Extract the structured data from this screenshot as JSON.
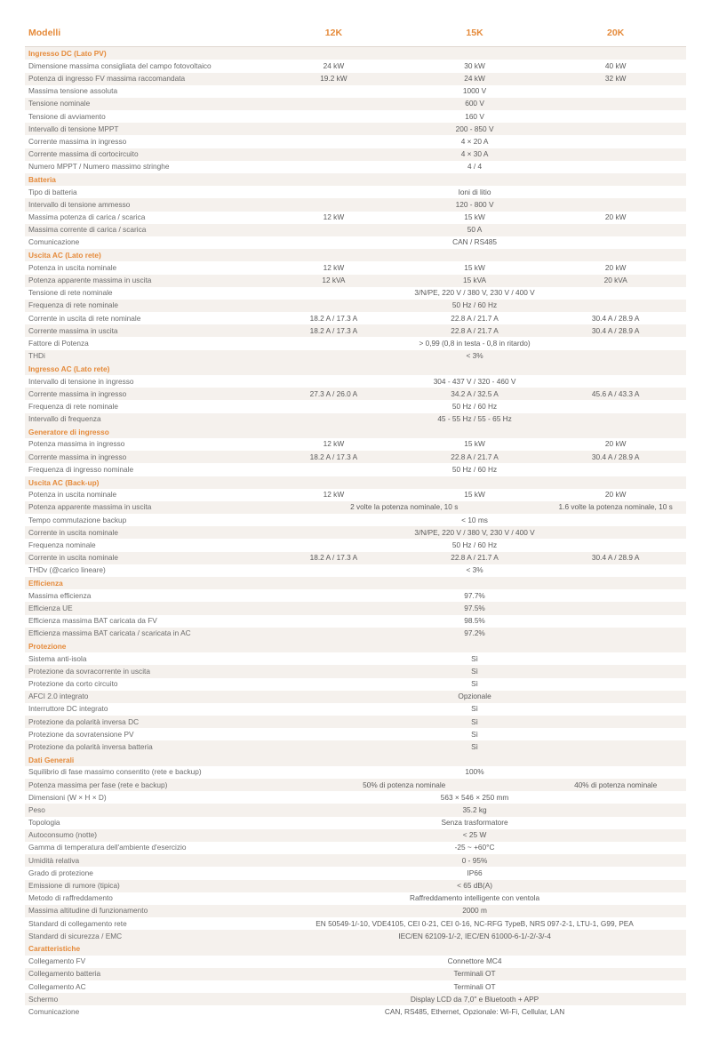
{
  "columns": {
    "label_header": "Modelli",
    "models": [
      "12K",
      "15K",
      "20K"
    ]
  },
  "sections": [
    {
      "title": "Ingresso DC (Lato PV)",
      "rows": [
        {
          "label": "Dimensione massima consigliata del campo fotovoltaico",
          "vals": [
            "24 kW",
            "30 kW",
            "40 kW"
          ]
        },
        {
          "label": "Potenza di ingresso FV massima raccomandata",
          "vals": [
            "19.2 kW",
            "24 kW",
            "32 kW"
          ]
        },
        {
          "label": "Massima tensione assoluta",
          "span": "1000 V"
        },
        {
          "label": "Tensione nominale",
          "span": "600 V"
        },
        {
          "label": "Tensione di avviamento",
          "span": "160 V"
        },
        {
          "label": "Intervallo di tensione MPPT",
          "span": "200 - 850 V"
        },
        {
          "label": "Corrente massima in ingresso",
          "span": "4 × 20 A"
        },
        {
          "label": "Corrente massima di cortocircuito",
          "span": "4 × 30 A"
        },
        {
          "label": "Numero MPPT / Numero massimo stringhe",
          "span": "4 / 4"
        }
      ]
    },
    {
      "title": "Batteria",
      "rows": [
        {
          "label": "Tipo di batteria",
          "span": "Ioni di litio"
        },
        {
          "label": "Intervallo di tensione ammesso",
          "span": "120 - 800 V"
        },
        {
          "label": "Massima potenza di carica / scarica",
          "vals": [
            "12 kW",
            "15 kW",
            "20 kW"
          ]
        },
        {
          "label": "Massima corrente di carica / scarica",
          "span": "50 A"
        },
        {
          "label": "Comunicazione",
          "span": "CAN / RS485"
        }
      ]
    },
    {
      "title": "Uscita AC (Lato rete)",
      "rows": [
        {
          "label": "Potenza in uscita nominale",
          "vals": [
            "12 kW",
            "15 kW",
            "20 kW"
          ]
        },
        {
          "label": "Potenza apparente massima in uscita",
          "vals": [
            "12 kVA",
            "15 kVA",
            "20 kVA"
          ]
        },
        {
          "label": "Tensione di rete nominale",
          "span": "3/N/PE, 220 V / 380 V, 230 V / 400 V"
        },
        {
          "label": "Frequenza di rete nominale",
          "span": "50 Hz / 60 Hz"
        },
        {
          "label": "Corrente in uscita di rete nominale",
          "vals": [
            "18.2 A / 17.3 A",
            "22.8 A / 21.7 A",
            "30.4 A / 28.9 A"
          ]
        },
        {
          "label": "Corrente massima in uscita",
          "vals": [
            "18.2 A / 17.3 A",
            "22.8 A / 21.7 A",
            "30.4 A / 28.9 A"
          ]
        },
        {
          "label": "Fattore di Potenza",
          "span": "> 0,99 (0,8 in testa - 0,8 in ritardo)"
        },
        {
          "label": "THDi",
          "span": "< 3%"
        }
      ]
    },
    {
      "title": "Ingresso AC (Lato rete)",
      "rows": [
        {
          "label": "Intervallo di tensione in ingresso",
          "span": "304 - 437 V / 320 - 460 V"
        },
        {
          "label": "Corrente massima in ingresso",
          "vals": [
            "27.3 A / 26.0 A",
            "34.2 A / 32.5 A",
            "45.6 A / 43.3 A"
          ]
        },
        {
          "label": "Frequenza di rete nominale",
          "span": "50 Hz / 60 Hz"
        },
        {
          "label": "Intervallo di frequenza",
          "span": "45 - 55 Hz / 55 - 65 Hz"
        }
      ]
    },
    {
      "title": "Generatore di ingresso",
      "rows": [
        {
          "label": "Potenza massima in ingresso",
          "vals": [
            "12 kW",
            "15 kW",
            "20 kW"
          ]
        },
        {
          "label": "Corrente massima in ingresso",
          "vals": [
            "18.2 A / 17.3 A",
            "22.8 A / 21.7 A",
            "30.4 A / 28.9 A"
          ]
        },
        {
          "label": "Frequenza di ingresso nominale",
          "span": "50 Hz / 60 Hz"
        }
      ]
    },
    {
      "title": "Uscita AC (Back-up)",
      "rows": [
        {
          "label": "Potenza in uscita nominale",
          "vals": [
            "12 kW",
            "15 kW",
            "20 kW"
          ]
        },
        {
          "label": "Potenza apparente massima in uscita",
          "vals": [
            "",
            "2 volte la potenza nominale, 10 s",
            "1.6 volte la potenza nominale, 10 s"
          ],
          "col1_spans_2": true
        },
        {
          "label": "Tempo commutazione backup",
          "span": "< 10 ms"
        },
        {
          "label": "Corrente in uscita nominale",
          "span": "3/N/PE, 220 V / 380 V, 230 V / 400 V"
        },
        {
          "label": "Frequenza nominale",
          "span": "50 Hz / 60 Hz"
        },
        {
          "label": "Corrente in uscita nominale",
          "vals": [
            "18.2 A / 17.3 A",
            "22.8 A / 21.7 A",
            "30.4 A / 28.9 A"
          ]
        },
        {
          "label": "THDv (@carico lineare)",
          "span": "< 3%"
        }
      ]
    },
    {
      "title": "Efficienza",
      "rows": [
        {
          "label": "Massima efficienza",
          "span": "97.7%"
        },
        {
          "label": "Efficienza UE",
          "span": "97.5%"
        },
        {
          "label": "Efficienza massima BAT caricata da FV",
          "span": "98.5%"
        },
        {
          "label": "Efficienza massima BAT caricata / scaricata in AC",
          "span": "97.2%"
        }
      ]
    },
    {
      "title": "Protezione",
      "rows": [
        {
          "label": "Sistema anti-isola",
          "span": "Sì"
        },
        {
          "label": "Protezione da sovracorrente in uscita",
          "span": "Sì"
        },
        {
          "label": "Protezione da corto circuito",
          "span": "Sì"
        },
        {
          "label": "AFCI 2.0 integrato",
          "span": "Opzionale"
        },
        {
          "label": "Interruttore DC integrato",
          "span": "Sì"
        },
        {
          "label": "Protezione da polarità inversa DC",
          "span": "Sì"
        },
        {
          "label": "Protezione da sovratensione PV",
          "span": "Sì"
        },
        {
          "label": "Protezione da polarità inversa batteria",
          "span": "Sì"
        }
      ]
    },
    {
      "title": "Dati Generali",
      "rows": [
        {
          "label": "Squilibrio di fase massimo consentito (rete e backup)",
          "span": "100%"
        },
        {
          "label": "Potenza massima per fase (rete e backup)",
          "vals": [
            "",
            "50% di potenza nominale",
            "40% di potenza nominale"
          ],
          "col1_spans_2": true
        },
        {
          "label": "Dimensioni (W × H × D)",
          "span": "563 × 546 × 250 mm"
        },
        {
          "label": "Peso",
          "span": "35.2 kg"
        },
        {
          "label": "Topologia",
          "span": "Senza trasformatore"
        },
        {
          "label": "Autoconsumo (notte)",
          "span": "< 25 W"
        },
        {
          "label": "Gamma di temperatura dell'ambiente d'esercizio",
          "span": "-25 ~ +60°C"
        },
        {
          "label": "Umidità relativa",
          "span": "0 - 95%"
        },
        {
          "label": "Grado di protezione",
          "span": "IP66"
        },
        {
          "label": "Emissione di rumore (tipica)",
          "span": "< 65 dB(A)"
        },
        {
          "label": "Metodo di raffreddamento",
          "span": "Raffreddamento intelligente con ventola"
        },
        {
          "label": "Massima altitudine di funzionamento",
          "span": "2000 m"
        },
        {
          "label": "Standard di collegamento rete",
          "span": "EN 50549-1/-10, VDE4105, CEI 0-21, CEI 0-16, NC-RFG TypeB, NRS 097-2-1, LTU-1, G99, PEA"
        },
        {
          "label": "Standard di sicurezza / EMC",
          "span": "IEC/EN 62109-1/-2, IEC/EN 61000-6-1/-2/-3/-4"
        }
      ]
    },
    {
      "title": "Caratteristiche",
      "rows": [
        {
          "label": "Collegamento FV",
          "span": "Connettore MC4"
        },
        {
          "label": "Collegamento batteria",
          "span": "Terminali OT"
        },
        {
          "label": "Collegamento AC",
          "span": "Terminali OT"
        },
        {
          "label": "Schermo",
          "span": "Display LCD da 7,0\" e Bluetooth + APP"
        },
        {
          "label": "Comunicazione",
          "span": "CAN, RS485, Ethernet, Opzionale: Wi-Fi, Cellular, LAN"
        }
      ]
    }
  ]
}
